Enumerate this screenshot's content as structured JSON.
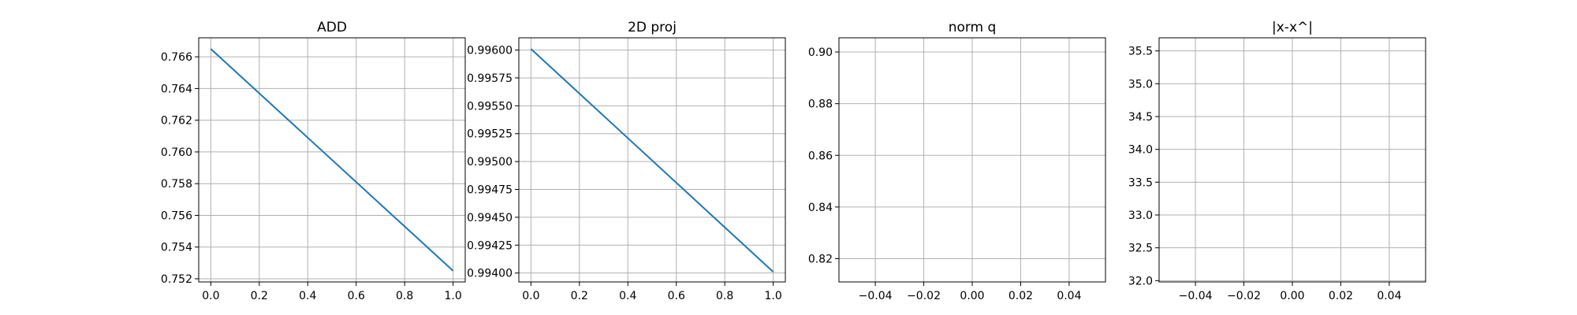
{
  "chart_data": [
    {
      "type": "line",
      "title": "ADD",
      "xlabel": "",
      "ylabel": "",
      "xlim": [
        -0.05,
        1.05
      ],
      "ylim": [
        0.7518,
        0.7672
      ],
      "xticks": [
        0.0,
        0.2,
        0.4,
        0.6,
        0.8,
        1.0
      ],
      "xtick_labels": [
        "0.0",
        "0.2",
        "0.4",
        "0.6",
        "0.8",
        "1.0"
      ],
      "yticks": [
        0.752,
        0.754,
        0.756,
        0.758,
        0.76,
        0.762,
        0.764,
        0.766
      ],
      "ytick_labels": [
        "0.752",
        "0.754",
        "0.756",
        "0.758",
        "0.760",
        "0.762",
        "0.764",
        "0.766"
      ],
      "grid": true,
      "series": [
        {
          "x": [
            0,
            1
          ],
          "y": [
            0.7665,
            0.7525
          ]
        }
      ]
    },
    {
      "type": "line",
      "title": "2D proj",
      "xlabel": "",
      "ylabel": "",
      "xlim": [
        -0.05,
        1.05
      ],
      "ylim": [
        0.99392,
        0.99611
      ],
      "xticks": [
        0.0,
        0.2,
        0.4,
        0.6,
        0.8,
        1.0
      ],
      "xtick_labels": [
        "0.0",
        "0.2",
        "0.4",
        "0.6",
        "0.8",
        "1.0"
      ],
      "yticks": [
        0.994,
        0.99425,
        0.9945,
        0.99475,
        0.995,
        0.99525,
        0.9955,
        0.99575,
        0.996
      ],
      "ytick_labels": [
        "0.99400",
        "0.99425",
        "0.99450",
        "0.99475",
        "0.99500",
        "0.99525",
        "0.99550",
        "0.99575",
        "0.99600"
      ],
      "grid": true,
      "series": [
        {
          "x": [
            0,
            1
          ],
          "y": [
            0.99601,
            0.99401
          ]
        }
      ]
    },
    {
      "type": "line",
      "title": "norm q",
      "xlabel": "",
      "ylabel": "",
      "xlim": [
        -0.055,
        0.055
      ],
      "ylim": [
        0.811,
        0.9055
      ],
      "xticks": [
        -0.04,
        -0.02,
        0.0,
        0.02,
        0.04
      ],
      "xtick_labels": [
        "−0.04",
        "−0.02",
        "0.00",
        "0.02",
        "0.04"
      ],
      "yticks": [
        0.82,
        0.84,
        0.86,
        0.88,
        0.9
      ],
      "ytick_labels": [
        "0.82",
        "0.84",
        "0.86",
        "0.88",
        "0.90"
      ],
      "grid": true,
      "series": [
        {
          "x": [],
          "y": []
        }
      ]
    },
    {
      "type": "line",
      "title": "|x-x^|",
      "xlabel": "",
      "ylabel": "",
      "xlim": [
        -0.055,
        0.055
      ],
      "ylim": [
        31.98,
        35.7
      ],
      "xticks": [
        -0.04,
        -0.02,
        0.0,
        0.02,
        0.04
      ],
      "xtick_labels": [
        "−0.04",
        "−0.02",
        "0.00",
        "0.02",
        "0.04"
      ],
      "yticks": [
        32.0,
        32.5,
        33.0,
        33.5,
        34.0,
        34.5,
        35.0,
        35.5
      ],
      "ytick_labels": [
        "32.0",
        "32.5",
        "33.0",
        "33.5",
        "34.0",
        "34.5",
        "35.0",
        "35.5"
      ],
      "grid": true,
      "series": [
        {
          "x": [],
          "y": []
        }
      ]
    }
  ]
}
